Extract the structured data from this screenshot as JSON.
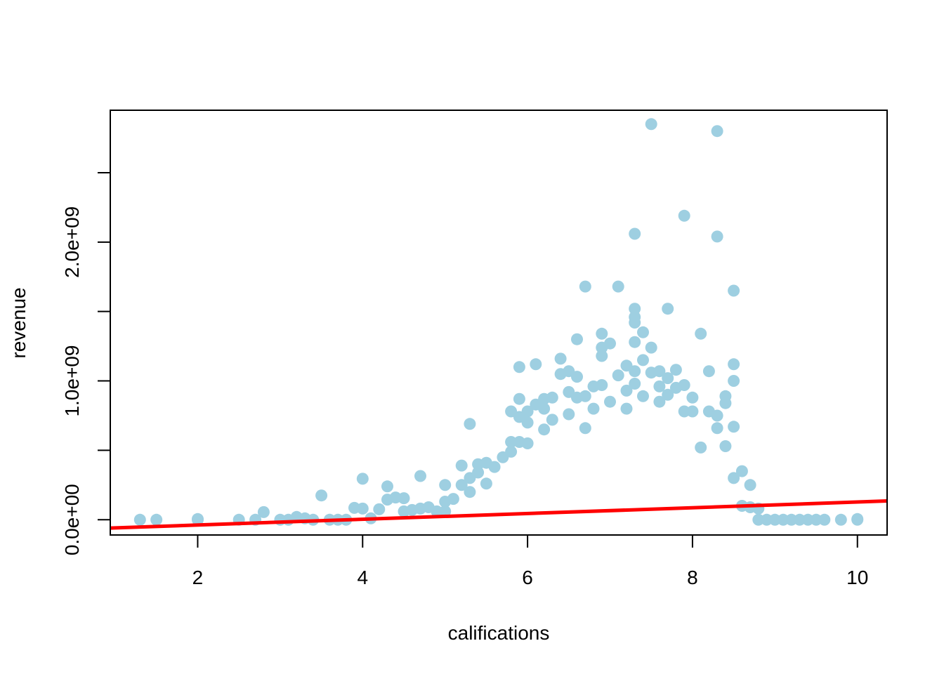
{
  "chart_data": {
    "type": "scatter",
    "title": "",
    "xlabel": "califications",
    "ylabel": "revenue",
    "xlim": [
      0.94,
      10.36
    ],
    "ylim": [
      -110000000.0,
      2950000000.0
    ],
    "x_ticks": [
      2,
      4,
      6,
      8,
      10
    ],
    "x_tick_labels": [
      "2",
      "4",
      "6",
      "8",
      "10"
    ],
    "y_ticks": [
      0,
      500000000.0,
      1000000000.0,
      1500000000.0,
      2000000000.0,
      2500000000.0
    ],
    "y_tick_labels": [
      "0.0e+00",
      "",
      "1.0e+09",
      "",
      "2.0e+09",
      ""
    ],
    "grid": false,
    "legend": "none",
    "point_color": "#9ecfe1",
    "line_color": "#ff0000",
    "regression_line": {
      "x": [
        0.94,
        10.36
      ],
      "y": [
        -60000000.0,
        135000000.0
      ]
    },
    "points": [
      [
        1.3,
        0
      ],
      [
        1.5,
        0
      ],
      [
        2.0,
        0
      ],
      [
        2.0,
        5000000.0
      ],
      [
        2.5,
        0
      ],
      [
        2.8,
        55000000.0
      ],
      [
        2.7,
        0
      ],
      [
        3.0,
        0
      ],
      [
        3.1,
        0
      ],
      [
        3.2,
        20000000.0
      ],
      [
        3.3,
        10000000.0
      ],
      [
        3.4,
        0
      ],
      [
        3.5,
        175000000.0
      ],
      [
        3.6,
        0
      ],
      [
        3.7,
        0
      ],
      [
        3.8,
        0
      ],
      [
        3.9,
        85000000.0
      ],
      [
        4.0,
        295000000.0
      ],
      [
        4.0,
        80000000.0
      ],
      [
        4.1,
        10000000.0
      ],
      [
        4.2,
        75000000.0
      ],
      [
        4.3,
        240000000.0
      ],
      [
        4.3,
        145000000.0
      ],
      [
        4.4,
        160000000.0
      ],
      [
        4.5,
        155000000.0
      ],
      [
        4.5,
        60000000.0
      ],
      [
        4.6,
        70000000.0
      ],
      [
        4.7,
        315000000.0
      ],
      [
        4.7,
        80000000.0
      ],
      [
        4.8,
        90000000.0
      ],
      [
        4.9,
        60000000.0
      ],
      [
        5.0,
        250000000.0
      ],
      [
        5.0,
        130000000.0
      ],
      [
        5.0,
        60000000.0
      ],
      [
        5.1,
        150000000.0
      ],
      [
        5.2,
        390000000.0
      ],
      [
        5.2,
        250000000.0
      ],
      [
        5.3,
        690000000.0
      ],
      [
        5.3,
        300000000.0
      ],
      [
        5.3,
        200000000.0
      ],
      [
        5.4,
        400000000.0
      ],
      [
        5.4,
        340000000.0
      ],
      [
        5.5,
        410000000.0
      ],
      [
        5.5,
        260000000.0
      ],
      [
        5.6,
        380000000.0
      ],
      [
        5.7,
        450000000.0
      ],
      [
        5.8,
        780000000.0
      ],
      [
        5.8,
        560000000.0
      ],
      [
        5.8,
        490000000.0
      ],
      [
        5.9,
        1100000000.0
      ],
      [
        5.9,
        870000000.0
      ],
      [
        5.9,
        740000000.0
      ],
      [
        5.9,
        560000000.0
      ],
      [
        6.0,
        780000000.0
      ],
      [
        6.0,
        700000000.0
      ],
      [
        6.0,
        550000000.0
      ],
      [
        6.1,
        1120000000.0
      ],
      [
        6.1,
        830000000.0
      ],
      [
        6.2,
        870000000.0
      ],
      [
        6.2,
        800000000.0
      ],
      [
        6.2,
        650000000.0
      ],
      [
        6.3,
        880000000.0
      ],
      [
        6.3,
        720000000.0
      ],
      [
        6.4,
        1160000000.0
      ],
      [
        6.4,
        1050000000.0
      ],
      [
        6.5,
        1070000000.0
      ],
      [
        6.5,
        920000000.0
      ],
      [
        6.5,
        760000000.0
      ],
      [
        6.6,
        1300000000.0
      ],
      [
        6.6,
        1030000000.0
      ],
      [
        6.6,
        880000000.0
      ],
      [
        6.7,
        1680000000.0
      ],
      [
        6.7,
        890000000.0
      ],
      [
        6.7,
        660000000.0
      ],
      [
        6.8,
        960000000.0
      ],
      [
        6.8,
        800000000.0
      ],
      [
        6.9,
        1340000000.0
      ],
      [
        6.9,
        1240000000.0
      ],
      [
        6.9,
        1180000000.0
      ],
      [
        6.9,
        970000000.0
      ],
      [
        7.0,
        1270000000.0
      ],
      [
        7.0,
        850000000.0
      ],
      [
        7.1,
        1680000000.0
      ],
      [
        7.1,
        1040000000.0
      ],
      [
        7.2,
        1110000000.0
      ],
      [
        7.2,
        930000000.0
      ],
      [
        7.2,
        800000000.0
      ],
      [
        7.3,
        2060000000.0
      ],
      [
        7.3,
        1520000000.0
      ],
      [
        7.3,
        1460000000.0
      ],
      [
        7.3,
        1420000000.0
      ],
      [
        7.3,
        1280000000.0
      ],
      [
        7.3,
        1070000000.0
      ],
      [
        7.3,
        980000000.0
      ],
      [
        7.4,
        1350000000.0
      ],
      [
        7.4,
        1150000000.0
      ],
      [
        7.4,
        890000000.0
      ],
      [
        7.5,
        2850000000.0
      ],
      [
        7.5,
        1240000000.0
      ],
      [
        7.5,
        1060000000.0
      ],
      [
        7.6,
        1070000000.0
      ],
      [
        7.6,
        960000000.0
      ],
      [
        7.6,
        850000000.0
      ],
      [
        7.7,
        1520000000.0
      ],
      [
        7.7,
        1020000000.0
      ],
      [
        7.7,
        900000000.0
      ],
      [
        7.8,
        1080000000.0
      ],
      [
        7.8,
        950000000.0
      ],
      [
        7.9,
        2190000000.0
      ],
      [
        7.9,
        970000000.0
      ],
      [
        7.9,
        780000000.0
      ],
      [
        8.0,
        880000000.0
      ],
      [
        8.0,
        780000000.0
      ],
      [
        8.1,
        1340000000.0
      ],
      [
        8.1,
        520000000.0
      ],
      [
        8.2,
        1070000000.0
      ],
      [
        8.2,
        780000000.0
      ],
      [
        8.3,
        2800000000.0
      ],
      [
        8.3,
        2040000000.0
      ],
      [
        8.3,
        750000000.0
      ],
      [
        8.3,
        660000000.0
      ],
      [
        8.4,
        890000000.0
      ],
      [
        8.4,
        840000000.0
      ],
      [
        8.4,
        530000000.0
      ],
      [
        8.5,
        1650000000.0
      ],
      [
        8.5,
        1120000000.0
      ],
      [
        8.5,
        1000000000.0
      ],
      [
        8.5,
        670000000.0
      ],
      [
        8.5,
        300000000.0
      ],
      [
        8.6,
        350000000.0
      ],
      [
        8.6,
        100000000.0
      ],
      [
        8.7,
        250000000.0
      ],
      [
        8.7,
        90000000.0
      ],
      [
        8.8,
        80000000.0
      ],
      [
        8.8,
        0
      ],
      [
        8.9,
        0
      ],
      [
        9.0,
        0
      ],
      [
        9.1,
        0
      ],
      [
        9.2,
        0
      ],
      [
        9.3,
        0
      ],
      [
        9.4,
        0
      ],
      [
        9.5,
        0
      ],
      [
        9.6,
        0
      ],
      [
        9.8,
        0
      ],
      [
        10.0,
        0
      ],
      [
        10.0,
        5000000.0
      ]
    ]
  }
}
